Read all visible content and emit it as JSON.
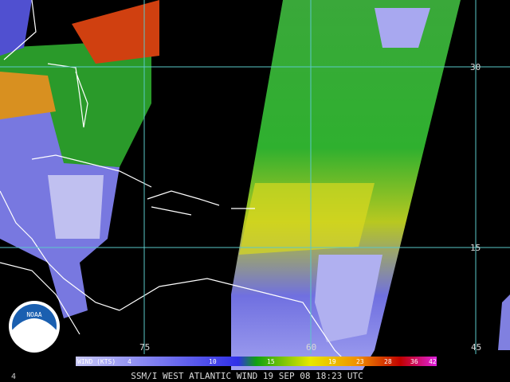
{
  "grid_labels": {
    "lat": [
      "30",
      "15"
    ],
    "lon": [
      "75",
      "60",
      "45"
    ]
  },
  "corner_label": "4",
  "legend": {
    "title": "WIND (KTS)",
    "ticks": [
      "4",
      "10",
      "15",
      "19",
      "23",
      "28",
      "36",
      "42"
    ]
  },
  "caption": "SSM/I WEST ATLANTIC WIND 19 SEP 08 18:23 UTC",
  "logo": "NOAA"
}
